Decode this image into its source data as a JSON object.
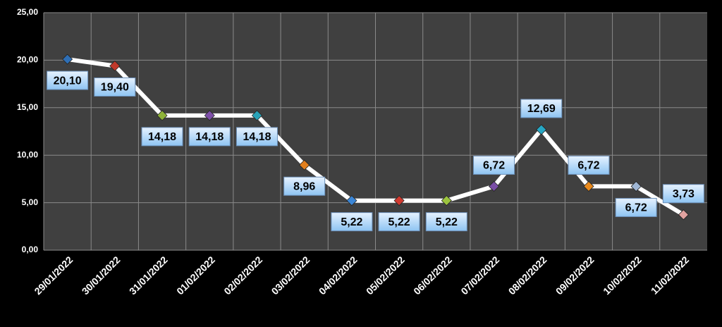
{
  "chart_data": {
    "type": "line",
    "categories": [
      "29/01/2022",
      "30/01/2022",
      "31/01/2022",
      "01/02/2022",
      "02/02/2022",
      "03/02/2022",
      "04/02/2022",
      "05/02/2022",
      "06/02/2022",
      "07/02/2022",
      "08/02/2022",
      "09/02/2022",
      "10/02/2022",
      "11/02/2022"
    ],
    "series": [
      {
        "color": "#ffffff",
        "values": [
          20.1,
          19.4,
          14.18,
          14.18,
          14.18,
          8.96,
          5.22,
          5.22,
          5.22,
          6.72,
          12.69,
          6.72,
          6.72,
          3.73
        ],
        "value_labels": [
          "20,10",
          "19,40",
          "14,18",
          "14,18",
          "14,18",
          "8,96",
          "5,22",
          "5,22",
          "5,22",
          "6,72",
          "12,69",
          "6,72",
          "6,72",
          "3,73"
        ],
        "point_colors": [
          "#2f6fb5",
          "#c0392b",
          "#8fb339",
          "#7d4fa8",
          "#2aa3b8",
          "#e2801e",
          "#3b86d6",
          "#d03a30",
          "#9cc43f",
          "#7a4ea6",
          "#27a7c4",
          "#e98a1d",
          "#9fb6d4",
          "#e2a3a0"
        ]
      }
    ],
    "ylim": [
      0,
      25
    ],
    "yticks": [
      {
        "value": 0,
        "label": "0,00"
      },
      {
        "value": 5,
        "label": "5,00"
      },
      {
        "value": 10,
        "label": "10,00"
      },
      {
        "value": 15,
        "label": "15,00"
      },
      {
        "value": 20,
        "label": "20,00"
      },
      {
        "value": 25,
        "label": "25,00"
      }
    ],
    "grid": true
  }
}
